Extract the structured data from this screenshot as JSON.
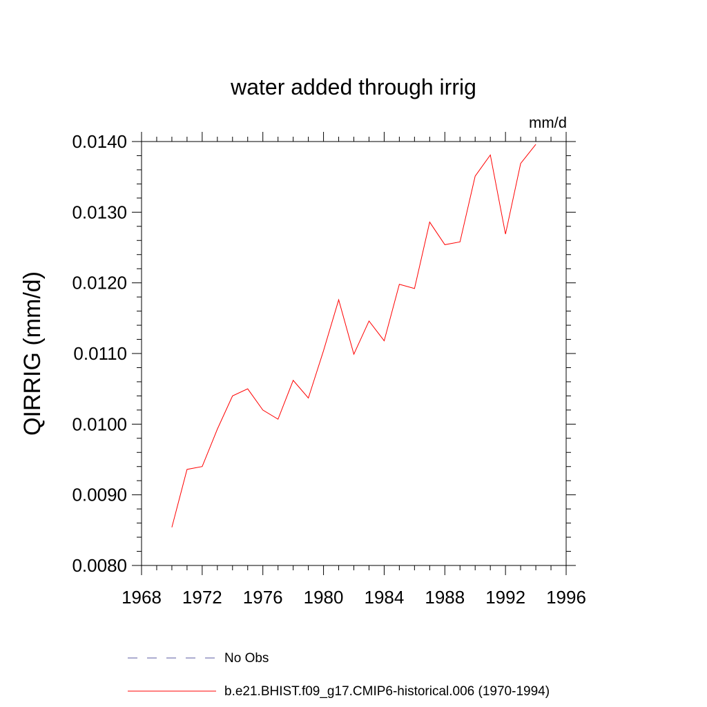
{
  "chart_data": {
    "type": "line",
    "title": "water added through irrig",
    "units": "mm/d",
    "ylabel": "QIRRIG  (mm/d)",
    "xlabel": "",
    "xlim": [
      1968,
      1996
    ],
    "ylim": [
      0.008,
      0.014
    ],
    "xticks": [
      1968,
      1972,
      1976,
      1980,
      1984,
      1988,
      1992,
      1996
    ],
    "xtick_labels": [
      "1968",
      "1972",
      "1976",
      "1980",
      "1984",
      "1988",
      "1992",
      "1996"
    ],
    "yticks": [
      0.008,
      0.009,
      0.01,
      0.011,
      0.012,
      0.013,
      0.014
    ],
    "ytick_labels": [
      "0.0080",
      "0.0090",
      "0.0100",
      "0.0110",
      "0.0120",
      "0.0130",
      "0.0140"
    ],
    "x_minor_step": 1,
    "y_minor_step": 0.0002,
    "grid": false,
    "legend_position": "bottom",
    "series": [
      {
        "name": "b.e21.BHIST.f09_g17.CMIP6-historical.006 (1970-1994)",
        "color": "#ff0000",
        "dash": "solid",
        "x": [
          1970,
          1971,
          1972,
          1973,
          1974,
          1975,
          1976,
          1977,
          1978,
          1979,
          1980,
          1981,
          1982,
          1983,
          1984,
          1985,
          1986,
          1987,
          1988,
          1989,
          1990,
          1991,
          1992,
          1993,
          1994
        ],
        "y": [
          0.00854,
          0.00936,
          0.0094,
          0.00993,
          0.0104,
          0.0105,
          0.0102,
          0.01007,
          0.01062,
          0.01037,
          0.01104,
          0.01176,
          0.01099,
          0.01146,
          0.01118,
          0.01198,
          0.01192,
          0.01286,
          0.01254,
          0.01258,
          0.01351,
          0.01381,
          0.01269,
          0.01369,
          0.01396
        ]
      }
    ],
    "legend": [
      {
        "label": "No Obs",
        "color": "#5a5aa0",
        "dash": "dashed"
      },
      {
        "label": "b.e21.BHIST.f09_g17.CMIP6-historical.006 (1970-1994)",
        "color": "#ff0000",
        "dash": "solid"
      }
    ]
  }
}
